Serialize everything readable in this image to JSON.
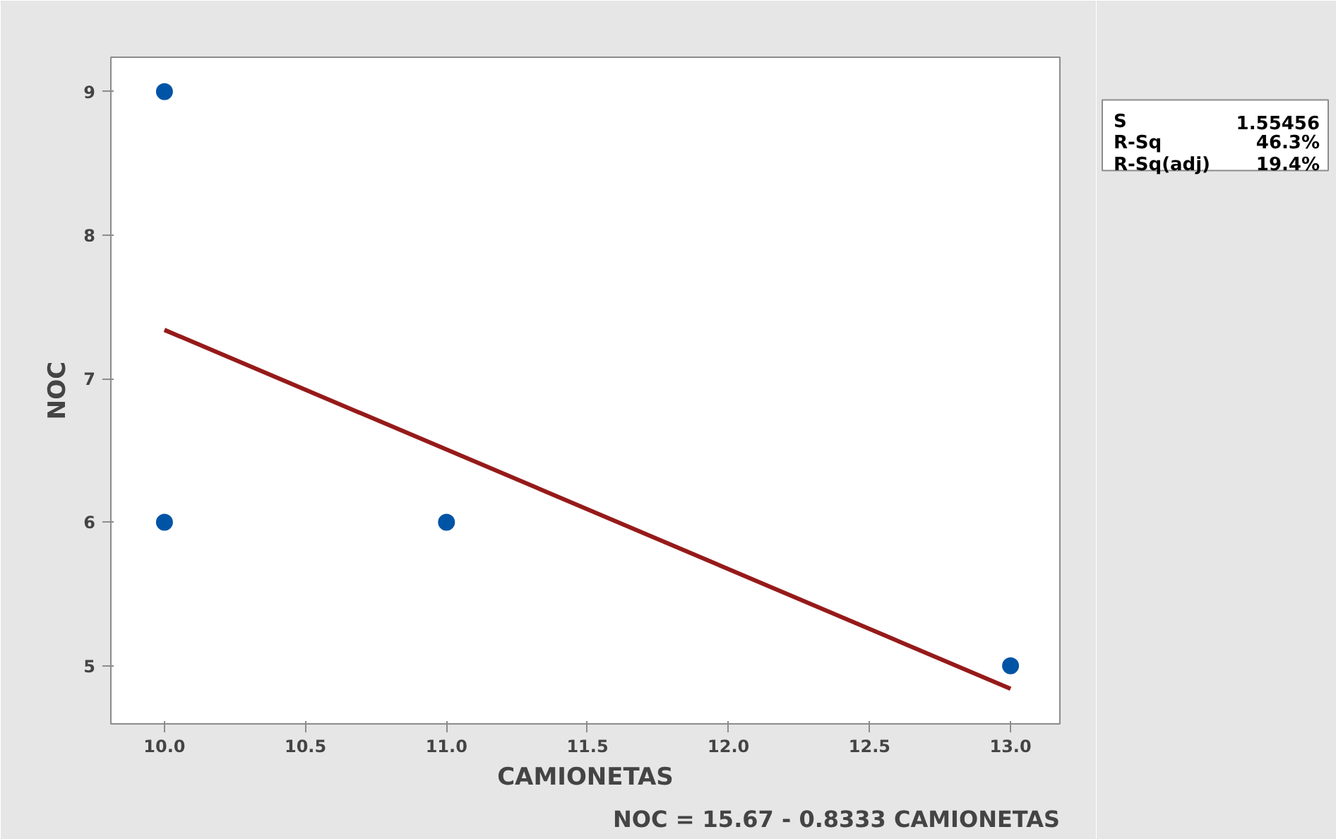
{
  "chart_data": {
    "type": "scatter",
    "xlabel": "CAMIONETAS",
    "ylabel": "NOC",
    "xlim": [
      9.81,
      13.175
    ],
    "xticks": [
      {
        "value": 10,
        "label": "10.0"
      },
      {
        "value": 10.5,
        "label": "10.5"
      },
      {
        "value": 11,
        "label": "11.0"
      },
      {
        "value": 11.5,
        "label": "11.5"
      },
      {
        "value": 12,
        "label": "12.0"
      },
      {
        "value": 12.5,
        "label": "12.5"
      },
      {
        "value": 13,
        "label": "13.0"
      }
    ],
    "ylim": [
      4.595,
      9.24
    ],
    "yticks": [
      5,
      6,
      7,
      8,
      9
    ],
    "grid": false,
    "marker": "circle",
    "series": [
      {
        "color": "#0054a6",
        "x": [
          10,
          10,
          11,
          13
        ],
        "values": [
          9,
          6,
          6,
          5
        ]
      },
      {
        "type": "line",
        "color": "#961a1a",
        "marker": "none",
        "x": [
          10,
          13
        ],
        "values": [
          7.34,
          4.84
        ]
      }
    ],
    "annotations": [
      "S 1.55456",
      "R-Sq 46.3%",
      "R-Sq(adj) 19.4%",
      "NOC = 15.67 - 0.8333 CAMIONETAS"
    ]
  }
}
